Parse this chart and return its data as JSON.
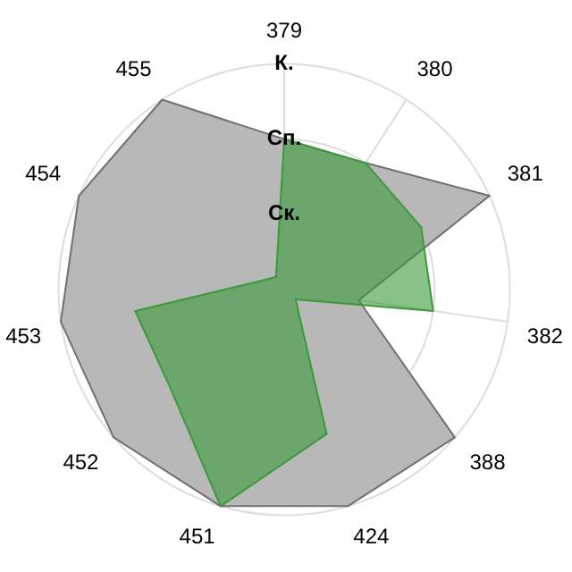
{
  "chart_data": {
    "type": "radar",
    "categories": [
      "379",
      "380",
      "381",
      "382",
      "388",
      "424",
      "451",
      "452",
      "453",
      "454",
      "455"
    ],
    "series": [
      {
        "color": "#707070",
        "values": [
          2,
          2,
          3,
          1,
          3,
          3,
          3,
          3,
          3,
          3,
          3
        ]
      },
      {
        "color": "#3a9a3a",
        "values": [
          2,
          2,
          2,
          2,
          0.2,
          2,
          3,
          2,
          2,
          0.3,
          0.2
        ]
      }
    ],
    "ylim": [
      0,
      3
    ],
    "yticks": [
      {
        "value": 1,
        "label": "Ск."
      },
      {
        "value": 2,
        "label": "Сп."
      },
      {
        "value": 3,
        "label": "К."
      }
    ],
    "grid": true,
    "legend": false,
    "marker": "none"
  }
}
